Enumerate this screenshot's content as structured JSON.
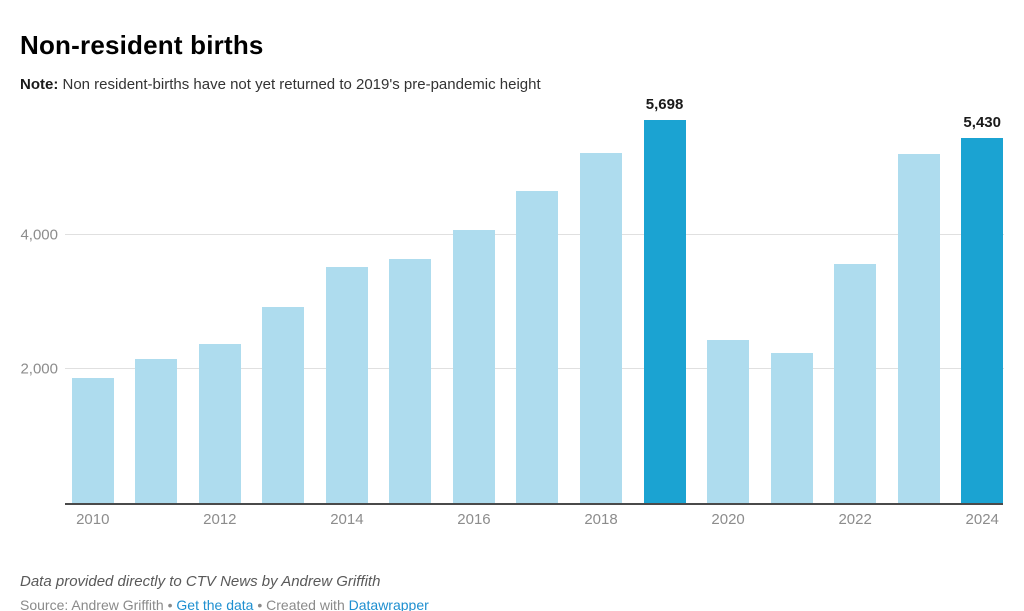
{
  "header": {
    "title": "Non-resident births",
    "note_label": "Note:",
    "note_text": "Non resident-births have not yet returned to 2019's pre-pandemic height"
  },
  "footer": {
    "byline": "Data provided directly to CTV News by Andrew Griffith",
    "source_text": "Source: Andrew Griffith",
    "separator": "•",
    "get_data_label": "Get the data",
    "created_with_label": "Created with",
    "datawrapper_label": "Datawrapper"
  },
  "colors": {
    "bar_default": "#aedcee",
    "bar_highlight": "#1ba3d2",
    "link": "#1e8fd0",
    "gridline": "#e0e0e0",
    "axis_line": "#4a4a4a",
    "tick_label": "#8c8c8c"
  },
  "chart_data": {
    "type": "bar",
    "title": "Non-resident births",
    "xlabel": "",
    "ylabel": "",
    "categories": [
      "2010",
      "2011",
      "2012",
      "2013",
      "2014",
      "2015",
      "2016",
      "2017",
      "2018",
      "2019",
      "2020",
      "2021",
      "2022",
      "2023",
      "2024"
    ],
    "values": [
      1870,
      2160,
      2370,
      2920,
      3520,
      3640,
      4070,
      4650,
      5210,
      5698,
      2440,
      2250,
      3570,
      5200,
      5430
    ],
    "highlighted_categories": [
      "2019",
      "2024"
    ],
    "data_labels": {
      "2019": "5,698",
      "2024": "5,430"
    },
    "y_ticks": [
      {
        "value": 2000,
        "label": "2,000"
      },
      {
        "value": 4000,
        "label": "4,000"
      }
    ],
    "x_tick_labels": [
      "2010",
      null,
      "2012",
      null,
      "2014",
      null,
      "2016",
      null,
      "2018",
      null,
      "2020",
      null,
      "2022",
      null,
      "2024"
    ],
    "ylim": [
      0,
      6000
    ],
    "grid": "horizontal",
    "legend": "none"
  }
}
